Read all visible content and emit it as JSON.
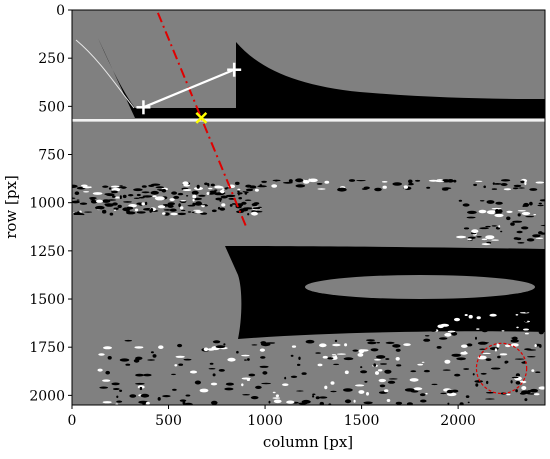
{
  "figure": {
    "xlabel": "column [px]",
    "ylabel": "row [px]",
    "x_ticks": [
      "0",
      "500",
      "1000",
      "1500",
      "2000"
    ],
    "y_ticks": [
      "0",
      "250",
      "500",
      "750",
      "1000",
      "1250",
      "1500",
      "1750",
      "2000"
    ]
  },
  "chart_data": {
    "type": "image",
    "xlim": [
      0,
      2450
    ],
    "ylim": [
      2050,
      0
    ],
    "x_tick_values": [
      0,
      500,
      1000,
      1500,
      2000
    ],
    "y_tick_values": [
      0,
      250,
      500,
      750,
      1000,
      1250,
      1500,
      1750,
      2000
    ],
    "grid": false,
    "colors": {
      "background": "#808080",
      "shadow": "#000000",
      "highlight": "#ffffff",
      "dashed_line": "#e00000",
      "marker": "#ffff00",
      "circle": "#e00000"
    },
    "white_segment": {
      "x": [
        370,
        840
      ],
      "y": [
        505,
        310
      ]
    },
    "red_dashdot_line": {
      "x": [
        445,
        900
      ],
      "y": [
        15,
        1120
      ]
    },
    "yellow_marker": {
      "x": 670,
      "y": 560
    },
    "red_circle": {
      "cx": 2225,
      "cy": 1860,
      "r": 130
    }
  }
}
